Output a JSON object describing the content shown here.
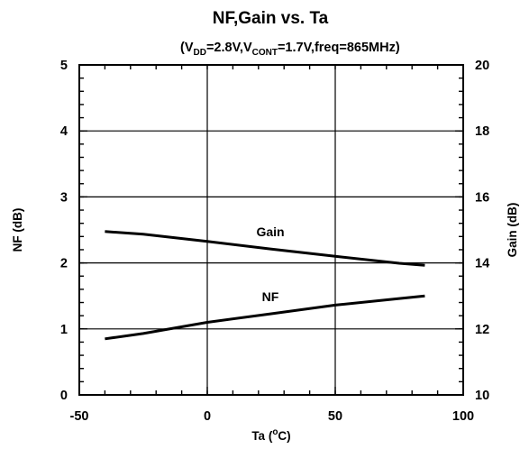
{
  "chart_data": {
    "type": "line",
    "title": "NF,Gain vs. Ta",
    "subtitle": {
      "open": "(V",
      "sub1": "DD",
      "mid": "=2.8V,V",
      "sub2": "CONT",
      "tail": "=1.7V,freq=865MHz)"
    },
    "xlabel": {
      "main": "Ta (",
      "sup": "o",
      "tail": "C)"
    },
    "ylabel_left": "NF (dB)",
    "ylabel_right": "Gain (dB)",
    "xlim": [
      -50,
      100
    ],
    "ylim_left": [
      0,
      5
    ],
    "ylim_right": [
      10,
      20
    ],
    "x_ticks": [
      -50,
      0,
      50,
      100
    ],
    "x_tick_labels": [
      "-50",
      "0",
      "50",
      "100"
    ],
    "y_left_ticks": [
      0,
      1,
      2,
      3,
      4,
      5
    ],
    "y_left_tick_labels": [
      "0",
      "1",
      "2",
      "3",
      "4",
      "5"
    ],
    "y_right_ticks": [
      10,
      12,
      14,
      16,
      18,
      20
    ],
    "y_right_tick_labels": [
      "10",
      "12",
      "14",
      "16",
      "18",
      "20"
    ],
    "grid": true,
    "series": [
      {
        "name": "Gain",
        "axis": "right",
        "x": [
          -40,
          -25,
          0,
          25,
          50,
          75,
          85
        ],
        "values": [
          14.95,
          14.87,
          14.65,
          14.42,
          14.2,
          13.99,
          13.93
        ]
      },
      {
        "name": "NF",
        "axis": "left",
        "x": [
          -40,
          -25,
          0,
          25,
          50,
          75,
          85
        ],
        "values": [
          0.85,
          0.93,
          1.1,
          1.23,
          1.36,
          1.46,
          1.5
        ]
      }
    ]
  }
}
